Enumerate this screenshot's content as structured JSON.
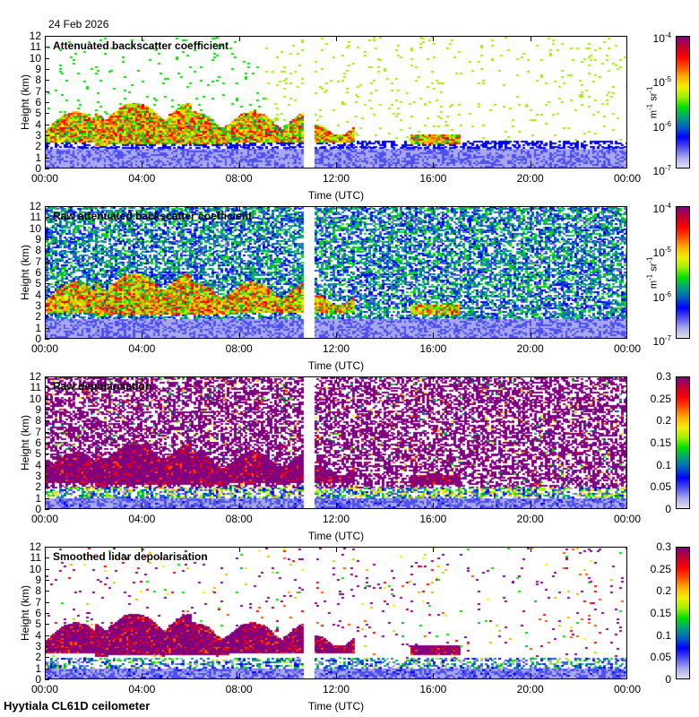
{
  "date": "24 Feb 2026",
  "footer": "Hyytiala CL61D ceilometer",
  "chart_data": [
    {
      "type": "heatmap",
      "title": "Attenuated backscatter coefficient",
      "xlabel": "Time (UTC)",
      "ylabel": "Height (km)",
      "xticks": [
        "00:00",
        "04:00",
        "08:00",
        "12:00",
        "16:00",
        "20:00",
        "00:00"
      ],
      "yticks": [
        "0",
        "1",
        "2",
        "3",
        "4",
        "5",
        "6",
        "7",
        "8",
        "9",
        "10",
        "11",
        "12"
      ],
      "ylim": [
        0,
        12
      ],
      "xlim_hours": [
        0,
        24
      ],
      "colorbar": {
        "scale": "log",
        "ticks": [
          "10-7",
          "10-6",
          "10-5",
          "10-4"
        ],
        "unit": "m-1 sr-1",
        "range": [
          1e-07,
          0.0001
        ]
      },
      "data_gap_hours": [
        10.6,
        11.0
      ],
      "features": {
        "cloud_layer_km": [
          2.2,
          6.0
        ],
        "cloud_hours": [
          0,
          17
        ],
        "boundary_layer_top_km": 1.8
      }
    },
    {
      "type": "heatmap",
      "title": "Raw attenuated backscatter coefficient",
      "xlabel": "Time (UTC)",
      "ylabel": "Height (km)",
      "xticks": [
        "00:00",
        "04:00",
        "08:00",
        "12:00",
        "16:00",
        "20:00",
        "00:00"
      ],
      "yticks": [
        "0",
        "1",
        "2",
        "3",
        "4",
        "5",
        "6",
        "7",
        "8",
        "9",
        "10",
        "11",
        "12"
      ],
      "ylim": [
        0,
        12
      ],
      "xlim_hours": [
        0,
        24
      ],
      "colorbar": {
        "scale": "log",
        "ticks": [
          "10-7",
          "10-6",
          "10-5",
          "10-4"
        ],
        "unit": "m-1 sr-1",
        "range": [
          1e-07,
          0.0001
        ]
      },
      "data_gap_hours": [
        10.6,
        11.0
      ]
    },
    {
      "type": "heatmap",
      "title": "Raw depolarisation",
      "xlabel": "Time (UTC)",
      "ylabel": "Height (km)",
      "xticks": [
        "00:00",
        "04:00",
        "08:00",
        "12:00",
        "16:00",
        "20:00",
        "00:00"
      ],
      "yticks": [
        "0",
        "1",
        "2",
        "3",
        "4",
        "5",
        "6",
        "7",
        "8",
        "9",
        "10",
        "11",
        "12"
      ],
      "ylim": [
        0,
        12
      ],
      "xlim_hours": [
        0,
        24
      ],
      "colorbar": {
        "scale": "linear",
        "ticks": [
          "0",
          "0.05",
          "0.1",
          "0.15",
          "0.2",
          "0.25",
          "0.3"
        ],
        "range": [
          0,
          0.3
        ]
      },
      "data_gap_hours": [
        10.6,
        11.0
      ]
    },
    {
      "type": "heatmap",
      "title": "Smoothed lidar depolarisation",
      "xlabel": "Time (UTC)",
      "ylabel": "Height (km)",
      "xticks": [
        "00:00",
        "04:00",
        "08:00",
        "12:00",
        "16:00",
        "20:00",
        "00:00"
      ],
      "yticks": [
        "0",
        "1",
        "2",
        "3",
        "4",
        "5",
        "6",
        "7",
        "8",
        "9",
        "10",
        "11",
        "12"
      ],
      "ylim": [
        0,
        12
      ],
      "xlim_hours": [
        0,
        24
      ],
      "colorbar": {
        "scale": "linear",
        "ticks": [
          "0",
          "0.05",
          "0.1",
          "0.15",
          "0.2",
          "0.25",
          "0.3"
        ],
        "range": [
          0,
          0.3
        ]
      },
      "data_gap_hours": [
        10.6,
        11.0
      ]
    }
  ],
  "colors": {
    "scale": [
      "#e0e0ee",
      "#a8a8f0",
      "#5050f0",
      "#0000ff",
      "#0060c0",
      "#00a080",
      "#00e000",
      "#a0f000",
      "#f0f000",
      "#ffb000",
      "#ff5000",
      "#ff0000",
      "#c00030",
      "#800080"
    ]
  }
}
